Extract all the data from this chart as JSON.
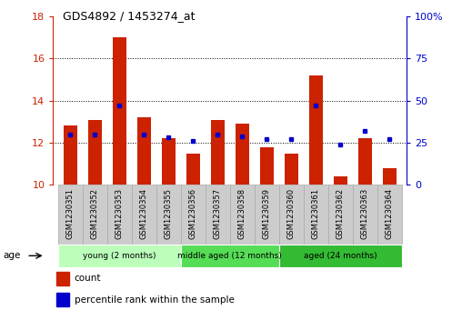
{
  "title": "GDS4892 / 1453274_at",
  "samples": [
    "GSM1230351",
    "GSM1230352",
    "GSM1230353",
    "GSM1230354",
    "GSM1230355",
    "GSM1230356",
    "GSM1230357",
    "GSM1230358",
    "GSM1230359",
    "GSM1230360",
    "GSM1230361",
    "GSM1230362",
    "GSM1230363",
    "GSM1230364"
  ],
  "counts": [
    12.8,
    13.1,
    17.0,
    13.2,
    12.2,
    11.5,
    13.1,
    12.9,
    11.8,
    11.5,
    15.2,
    10.4,
    12.2,
    10.8
  ],
  "percentiles": [
    30,
    30,
    47,
    30,
    28,
    26,
    30,
    29,
    27,
    27,
    47,
    24,
    32,
    27
  ],
  "y_min": 10,
  "y_max": 18,
  "y_ticks": [
    10,
    12,
    14,
    16,
    18
  ],
  "y2_ticks": [
    0,
    25,
    50,
    75,
    100
  ],
  "bar_color": "#cc2200",
  "marker_color": "#0000cc",
  "bar_width": 0.55,
  "groups": [
    {
      "label": "young (2 months)",
      "start": 0,
      "end": 5,
      "color": "#bbffbb"
    },
    {
      "label": "middle aged (12 months)",
      "start": 5,
      "end": 9,
      "color": "#55dd55"
    },
    {
      "label": "aged (24 months)",
      "start": 9,
      "end": 14,
      "color": "#33bb33"
    }
  ],
  "age_label": "age",
  "legend_count": "count",
  "legend_pct": "percentile rank within the sample",
  "left_axis_color": "#cc2200",
  "right_axis_color": "#0000cc",
  "tick_bg_color": "#cccccc",
  "tick_bg_edge": "#aaaaaa"
}
